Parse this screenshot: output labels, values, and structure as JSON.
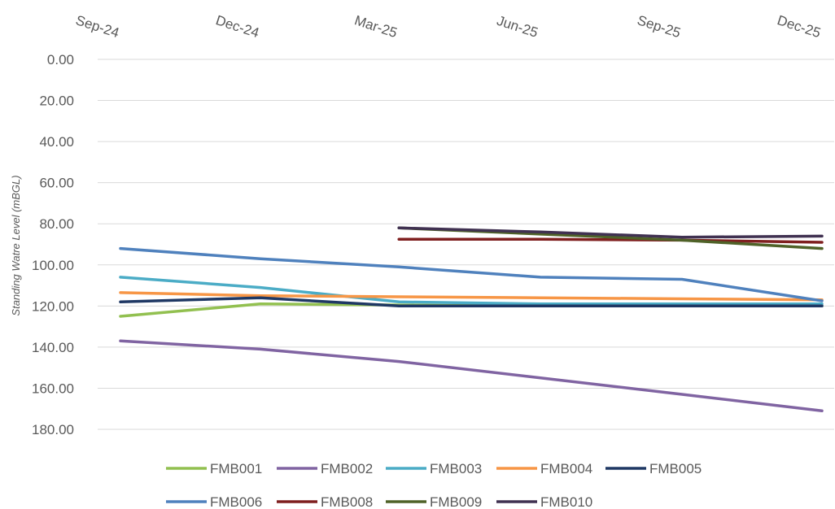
{
  "chart_data": {
    "type": "line",
    "title": "",
    "xlabel": "",
    "ylabel": "Standing Watre Level (mBGL)",
    "x_ticks": [
      "Sep-24",
      "Dec-24",
      "Mar-25",
      "Jun-25",
      "Sep-25",
      "Dec-25"
    ],
    "x_axis_position": "top",
    "y_inverted": true,
    "ylim": [
      0,
      180
    ],
    "y_ticks": [
      "0.00",
      "20.00",
      "40.00",
      "60.00",
      "80.00",
      "100.00",
      "120.00",
      "140.00",
      "160.00",
      "180.00"
    ],
    "grid": true,
    "legend_position": "bottom",
    "series": [
      {
        "name": "FMB001",
        "color": "#92c050",
        "points": [
          [
            "2024-09-01",
            125
          ],
          [
            "2024-12-01",
            119
          ],
          [
            "2025-03-01",
            119.5
          ],
          [
            "2025-06-01",
            120
          ],
          [
            "2025-09-01",
            120
          ],
          [
            "2025-12-01",
            120
          ]
        ]
      },
      {
        "name": "FMB002",
        "color": "#8064a2",
        "points": [
          [
            "2024-09-01",
            137
          ],
          [
            "2024-12-01",
            141
          ],
          [
            "2025-03-01",
            147
          ],
          [
            "2025-06-01",
            155
          ],
          [
            "2025-09-01",
            163
          ],
          [
            "2025-12-01",
            171
          ]
        ]
      },
      {
        "name": "FMB003",
        "color": "#4bacc6",
        "points": [
          [
            "2024-09-01",
            106
          ],
          [
            "2024-12-01",
            111
          ],
          [
            "2025-03-01",
            118
          ],
          [
            "2025-06-01",
            119
          ],
          [
            "2025-09-01",
            119
          ],
          [
            "2025-12-01",
            119
          ]
        ]
      },
      {
        "name": "FMB004",
        "color": "#f79646",
        "points": [
          [
            "2024-09-01",
            113.5
          ],
          [
            "2024-12-01",
            115
          ],
          [
            "2025-03-01",
            115.5
          ],
          [
            "2025-06-01",
            116
          ],
          [
            "2025-09-01",
            116.5
          ],
          [
            "2025-12-01",
            117
          ]
        ]
      },
      {
        "name": "FMB005",
        "color": "#1f3864",
        "points": [
          [
            "2024-09-01",
            118
          ],
          [
            "2024-12-01",
            116
          ],
          [
            "2025-03-01",
            120
          ],
          [
            "2025-06-01",
            120
          ],
          [
            "2025-09-01",
            120
          ],
          [
            "2025-12-01",
            120
          ]
        ]
      },
      {
        "name": "FMB006",
        "color": "#4f81bd",
        "points": [
          [
            "2024-09-01",
            92
          ],
          [
            "2024-12-01",
            97
          ],
          [
            "2025-03-01",
            101
          ],
          [
            "2025-06-01",
            106
          ],
          [
            "2025-09-01",
            107
          ],
          [
            "2025-12-01",
            117.5
          ]
        ]
      },
      {
        "name": "FMB008",
        "color": "#7f1f1f",
        "points": [
          [
            "2025-03-01",
            87.5
          ],
          [
            "2025-06-01",
            87.5
          ],
          [
            "2025-09-01",
            88
          ],
          [
            "2025-12-01",
            89
          ]
        ]
      },
      {
        "name": "FMB009",
        "color": "#4f6228",
        "points": [
          [
            "2025-03-01",
            82
          ],
          [
            "2025-06-01",
            85
          ],
          [
            "2025-09-01",
            88
          ],
          [
            "2025-12-01",
            92
          ]
        ]
      },
      {
        "name": "FMB010",
        "color": "#403151",
        "points": [
          [
            "2025-03-01",
            82
          ],
          [
            "2025-06-01",
            84
          ],
          [
            "2025-09-01",
            86.5
          ],
          [
            "2025-12-01",
            86
          ]
        ]
      }
    ]
  }
}
